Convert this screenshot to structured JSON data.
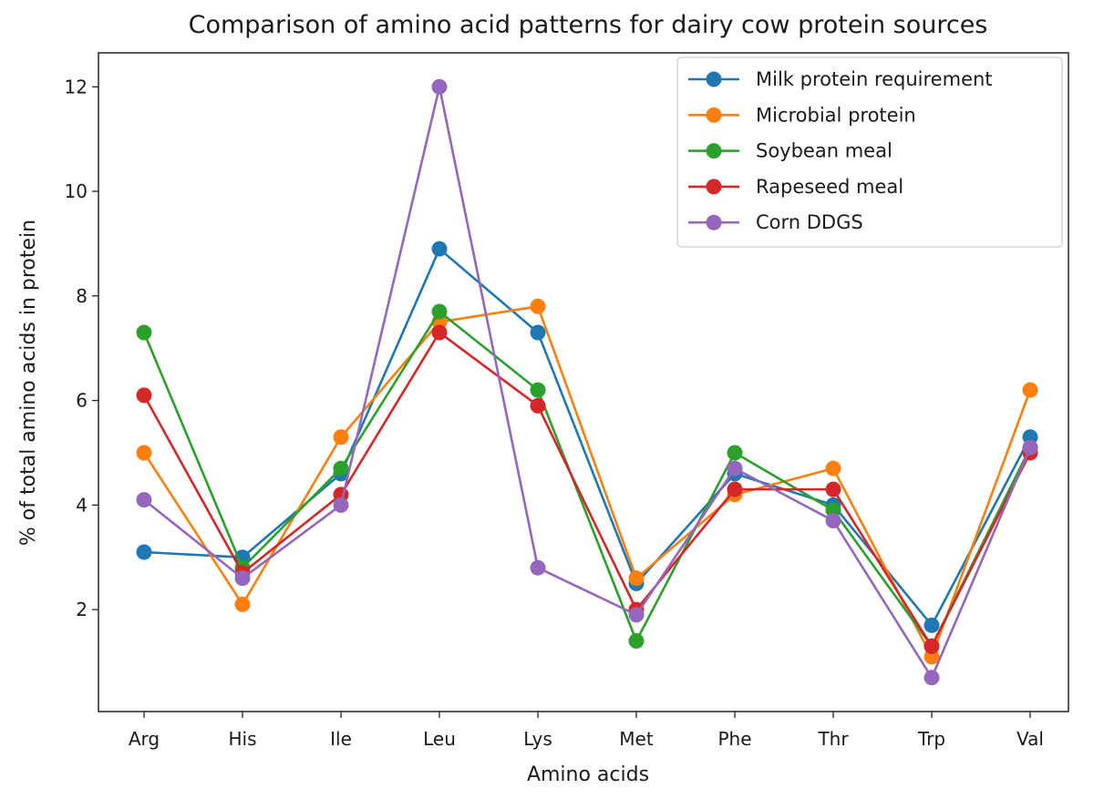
{
  "chart_data": {
    "type": "line",
    "title": "Comparison of amino acid patterns for dairy cow protein sources",
    "xlabel": "Amino acids",
    "ylabel": "% of total amino acids in protein",
    "categories": [
      "Arg",
      "His",
      "Ile",
      "Leu",
      "Lys",
      "Met",
      "Phe",
      "Thr",
      "Trp",
      "Val"
    ],
    "yticks": [
      2,
      4,
      6,
      8,
      10,
      12
    ],
    "ylim": [
      0.05,
      12.65
    ],
    "grid": false,
    "legend_position": "top-right",
    "series": [
      {
        "name": "Milk protein requirement",
        "color": "#1f77b4",
        "values": [
          3.1,
          3.0,
          4.6,
          8.9,
          7.3,
          2.5,
          4.6,
          4.0,
          1.7,
          5.3
        ]
      },
      {
        "name": "Microbial protein",
        "color": "#ff7f0e",
        "values": [
          5.0,
          2.1,
          5.3,
          7.5,
          7.8,
          2.6,
          4.2,
          4.7,
          1.1,
          6.2
        ]
      },
      {
        "name": "Soybean meal",
        "color": "#2ca02c",
        "values": [
          7.3,
          2.8,
          4.7,
          7.7,
          6.2,
          1.4,
          5.0,
          3.9,
          1.3,
          5.1
        ]
      },
      {
        "name": "Rapeseed meal",
        "color": "#d62728",
        "values": [
          6.1,
          2.7,
          4.2,
          7.3,
          5.9,
          2.0,
          4.3,
          4.3,
          1.3,
          5.0
        ]
      },
      {
        "name": "Corn DDGS",
        "color": "#9467bd",
        "values": [
          4.1,
          2.6,
          4.0,
          12.0,
          2.8,
          1.9,
          4.7,
          3.7,
          0.7,
          5.1
        ]
      }
    ]
  }
}
